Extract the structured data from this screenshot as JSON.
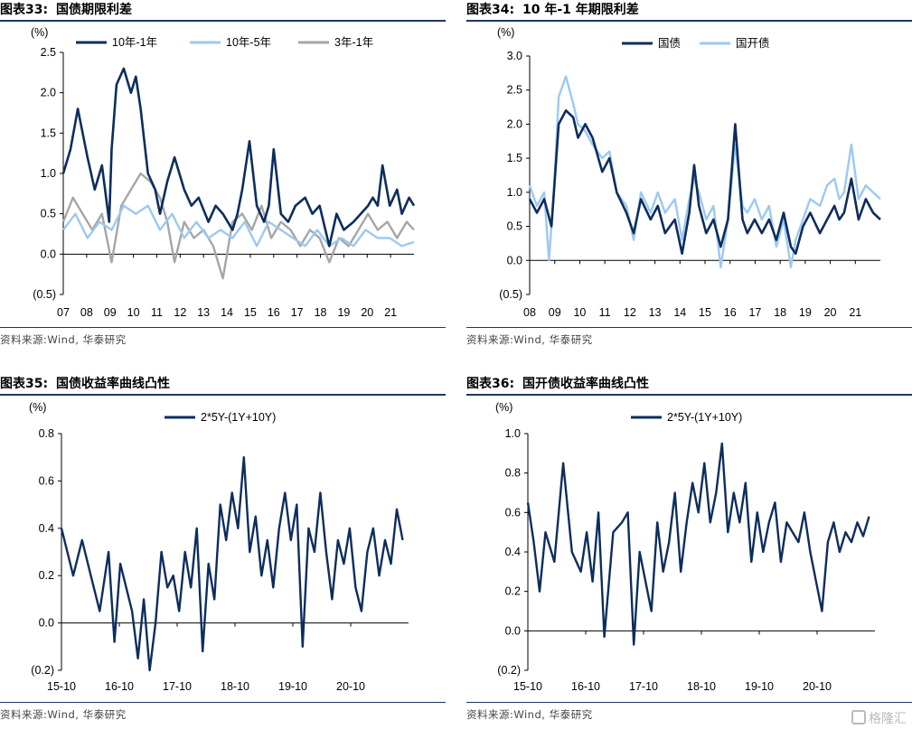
{
  "watermark": "格隆汇",
  "charts": [
    {
      "id": "c33",
      "title_num": "图表33:",
      "title": "国债期限利差",
      "source": "资料来源:Wind, 华泰研究",
      "chart_data": {
        "type": "line",
        "ylabel": "(%)",
        "ylim": [
          -0.5,
          2.5
        ],
        "yticks": [
          2.5,
          2.0,
          1.5,
          1.0,
          0.5,
          0.0,
          -0.5
        ],
        "ytick_labels": [
          "2.5",
          "2.0",
          "1.5",
          "1.0",
          "0.5",
          "0.0",
          "(0.5)"
        ],
        "xlim": [
          0,
          14.5
        ],
        "xtick_labels": [
          "07",
          "08",
          "09",
          "10",
          "11",
          "12",
          "13",
          "14",
          "15",
          "16",
          "17",
          "18",
          "19",
          "20",
          "21"
        ],
        "legend": "top",
        "series": [
          {
            "name": "10年-1年",
            "color": "#0d2d5e",
            "width": 2.6,
            "x": [
              0,
              0.3,
              0.6,
              1.0,
              1.3,
              1.6,
              1.9,
              2.0,
              2.2,
              2.5,
              2.8,
              3.0,
              3.2,
              3.5,
              3.8,
              4.0,
              4.3,
              4.6,
              5.0,
              5.3,
              5.6,
              6.0,
              6.3,
              6.6,
              7.0,
              7.2,
              7.4,
              7.7,
              8.0,
              8.3,
              8.5,
              8.7,
              9.0,
              9.3,
              9.6,
              10.0,
              10.3,
              10.6,
              11.0,
              11.3,
              11.6,
              12.0,
              12.3,
              12.6,
              12.8,
              13.0,
              13.2,
              13.5,
              13.8,
              14.0,
              14.3,
              14.5
            ],
            "y": [
              1.0,
              1.3,
              1.8,
              1.2,
              0.8,
              1.1,
              0.4,
              1.3,
              2.1,
              2.3,
              2.0,
              2.2,
              1.8,
              1.0,
              0.8,
              0.5,
              0.9,
              1.2,
              0.8,
              0.6,
              0.7,
              0.4,
              0.6,
              0.5,
              0.3,
              0.5,
              0.8,
              1.4,
              0.6,
              0.4,
              0.6,
              1.3,
              0.5,
              0.4,
              0.6,
              0.7,
              0.5,
              0.6,
              0.1,
              0.5,
              0.3,
              0.4,
              0.5,
              0.6,
              0.7,
              0.6,
              1.1,
              0.6,
              0.8,
              0.5,
              0.7,
              0.6
            ]
          },
          {
            "name": "10年-5年",
            "color": "#9cc9f2",
            "width": 2.4,
            "x": [
              0,
              0.5,
              1.0,
              1.5,
              2.0,
              2.5,
              3.0,
              3.5,
              4.0,
              4.5,
              5.0,
              5.5,
              6.0,
              6.5,
              7.0,
              7.5,
              8.0,
              8.5,
              9.0,
              9.5,
              10.0,
              10.5,
              11.0,
              11.5,
              12.0,
              12.5,
              13.0,
              13.5,
              14.0,
              14.5
            ],
            "y": [
              0.3,
              0.5,
              0.2,
              0.4,
              0.3,
              0.6,
              0.5,
              0.6,
              0.3,
              0.5,
              0.2,
              0.4,
              0.2,
              0.3,
              0.2,
              0.4,
              0.1,
              0.4,
              0.3,
              0.2,
              0.1,
              0.3,
              0.1,
              0.2,
              0.1,
              0.3,
              0.2,
              0.2,
              0.1,
              0.15
            ]
          },
          {
            "name": "3年-1年",
            "color": "#a6a6a6",
            "width": 2.4,
            "x": [
              0,
              0.4,
              0.8,
              1.2,
              1.6,
              2.0,
              2.4,
              2.8,
              3.2,
              3.6,
              4.0,
              4.3,
              4.6,
              5.0,
              5.4,
              5.8,
              6.2,
              6.6,
              7.0,
              7.4,
              7.8,
              8.2,
              8.6,
              9.0,
              9.4,
              9.8,
              10.2,
              10.6,
              11.0,
              11.4,
              11.8,
              12.2,
              12.6,
              13.0,
              13.4,
              13.8,
              14.2,
              14.5
            ],
            "y": [
              0.4,
              0.7,
              0.5,
              0.3,
              0.5,
              -0.1,
              0.6,
              0.8,
              1.0,
              0.9,
              0.7,
              0.4,
              -0.1,
              0.4,
              0.2,
              0.3,
              0.1,
              -0.3,
              0.4,
              0.5,
              0.3,
              0.6,
              0.2,
              0.4,
              0.3,
              0.1,
              0.3,
              0.2,
              -0.1,
              0.2,
              0.1,
              0.3,
              0.5,
              0.3,
              0.4,
              0.2,
              0.4,
              0.3
            ]
          }
        ]
      }
    },
    {
      "id": "c34",
      "title_num": "图表34:",
      "title": "10 年-1 年期限利差",
      "source": "资料来源:Wind, 华泰研究",
      "chart_data": {
        "type": "line",
        "ylabel": "(%)",
        "ylim": [
          -0.5,
          3.0
        ],
        "yticks": [
          3.0,
          2.5,
          2.0,
          1.5,
          1.0,
          0.5,
          0.0,
          -0.5
        ],
        "ytick_labels": [
          "3.0",
          "2.5",
          "2.0",
          "1.5",
          "1.0",
          "0.5",
          "0.0",
          "(0.5)"
        ],
        "xlim": [
          0,
          14.5
        ],
        "xtick_labels": [
          "08",
          "09",
          "10",
          "11",
          "12",
          "13",
          "14",
          "15",
          "16",
          "17",
          "18",
          "19",
          "20",
          "21"
        ],
        "legend": "top",
        "series": [
          {
            "name": "国债",
            "color": "#0d2d5e",
            "width": 2.6,
            "x": [
              0,
              0.3,
              0.6,
              0.9,
              1.0,
              1.2,
              1.5,
              1.8,
              2.0,
              2.3,
              2.6,
              3.0,
              3.3,
              3.6,
              4.0,
              4.3,
              4.6,
              5.0,
              5.3,
              5.6,
              6.0,
              6.3,
              6.6,
              6.8,
              7.0,
              7.3,
              7.6,
              7.9,
              8.2,
              8.5,
              8.8,
              9.0,
              9.3,
              9.6,
              9.9,
              10.2,
              10.5,
              10.8,
              11.0,
              11.3,
              11.6,
              12.0,
              12.3,
              12.6,
              12.8,
              13.0,
              13.3,
              13.6,
              13.9,
              14.2,
              14.5
            ],
            "y": [
              0.9,
              0.7,
              0.9,
              0.5,
              1.0,
              2.0,
              2.2,
              2.1,
              1.8,
              2.0,
              1.8,
              1.3,
              1.5,
              1.0,
              0.7,
              0.4,
              0.9,
              0.6,
              0.8,
              0.4,
              0.6,
              0.1,
              0.7,
              1.4,
              0.8,
              0.4,
              0.6,
              0.2,
              0.6,
              2.0,
              0.6,
              0.4,
              0.6,
              0.4,
              0.6,
              0.3,
              0.7,
              0.2,
              0.1,
              0.5,
              0.7,
              0.4,
              0.6,
              0.8,
              0.6,
              0.7,
              1.2,
              0.6,
              0.9,
              0.7,
              0.6
            ]
          },
          {
            "name": "国开债",
            "color": "#9cc9f2",
            "width": 2.4,
            "x": [
              0,
              0.3,
              0.6,
              0.8,
              1.0,
              1.2,
              1.5,
              1.8,
              2.0,
              2.3,
              2.6,
              3.0,
              3.3,
              3.6,
              4.0,
              4.3,
              4.6,
              5.0,
              5.3,
              5.6,
              6.0,
              6.3,
              6.6,
              6.8,
              7.0,
              7.3,
              7.6,
              7.9,
              8.2,
              8.5,
              8.8,
              9.0,
              9.3,
              9.6,
              9.9,
              10.2,
              10.5,
              10.8,
              11.0,
              11.3,
              11.6,
              12.0,
              12.3,
              12.6,
              12.8,
              13.0,
              13.3,
              13.6,
              13.9,
              14.2,
              14.5
            ],
            "y": [
              1.1,
              0.8,
              1.0,
              0.0,
              1.0,
              2.4,
              2.7,
              2.3,
              2.0,
              1.9,
              1.7,
              1.5,
              1.6,
              1.0,
              0.8,
              0.3,
              1.0,
              0.7,
              1.0,
              0.7,
              0.9,
              0.3,
              0.9,
              1.2,
              1.0,
              0.6,
              0.8,
              -0.1,
              0.6,
              1.7,
              0.8,
              0.7,
              0.9,
              0.6,
              0.8,
              0.2,
              0.6,
              -0.1,
              0.3,
              0.6,
              0.9,
              0.8,
              1.1,
              1.2,
              0.9,
              1.0,
              1.7,
              0.9,
              1.1,
              1.0,
              0.9
            ]
          }
        ]
      }
    },
    {
      "id": "c35",
      "title_num": "图表35:",
      "title": "国债收益率曲线凸性",
      "source": "资料来源:Wind, 华泰研究",
      "chart_data": {
        "type": "line",
        "ylabel": "(%)",
        "ylim": [
          -0.2,
          0.8
        ],
        "yticks": [
          0.8,
          0.6,
          0.4,
          0.2,
          0.0,
          -0.2
        ],
        "ytick_labels": [
          "0.8",
          "0.6",
          "0.4",
          "0.2",
          "0.0",
          "(0.2)"
        ],
        "xlim": [
          0,
          5.9
        ],
        "xtick_labels": [
          "15-10",
          "16-10",
          "17-10",
          "18-10",
          "19-10",
          "20-10"
        ],
        "legend": "top",
        "series": [
          {
            "name": "2*5Y-(1Y+10Y)",
            "color": "#0d2d5e",
            "width": 2.4,
            "x": [
              0,
              0.1,
              0.2,
              0.35,
              0.5,
              0.65,
              0.8,
              0.9,
              1.0,
              1.1,
              1.2,
              1.3,
              1.4,
              1.5,
              1.6,
              1.7,
              1.8,
              1.9,
              2.0,
              2.1,
              2.2,
              2.3,
              2.4,
              2.5,
              2.6,
              2.7,
              2.8,
              2.9,
              3.0,
              3.1,
              3.2,
              3.3,
              3.4,
              3.5,
              3.6,
              3.7,
              3.8,
              3.9,
              4.0,
              4.1,
              4.2,
              4.3,
              4.4,
              4.5,
              4.6,
              4.7,
              4.8,
              4.9,
              5.0,
              5.1,
              5.2,
              5.3,
              5.4,
              5.5,
              5.6,
              5.7,
              5.8
            ],
            "y": [
              0.4,
              0.3,
              0.2,
              0.35,
              0.2,
              0.05,
              0.3,
              -0.08,
              0.25,
              0.15,
              0.05,
              -0.15,
              0.1,
              -0.2,
              0.0,
              0.3,
              0.15,
              0.2,
              0.05,
              0.3,
              0.15,
              0.4,
              -0.12,
              0.25,
              0.1,
              0.5,
              0.35,
              0.55,
              0.4,
              0.7,
              0.3,
              0.45,
              0.2,
              0.35,
              0.15,
              0.4,
              0.55,
              0.35,
              0.5,
              -0.1,
              0.4,
              0.3,
              0.55,
              0.3,
              0.1,
              0.35,
              0.25,
              0.4,
              0.15,
              0.05,
              0.3,
              0.4,
              0.2,
              0.35,
              0.25,
              0.48,
              0.35
            ]
          }
        ]
      }
    },
    {
      "id": "c36",
      "title_num": "图表36:",
      "title": "国开债收益率曲线凸性",
      "source": "资料来源:Wind, 华泰研究",
      "chart_data": {
        "type": "line",
        "ylabel": "(%)",
        "ylim": [
          -0.2,
          1.0
        ],
        "yticks": [
          1.0,
          0.8,
          0.6,
          0.4,
          0.2,
          0.0,
          -0.2
        ],
        "ytick_labels": [
          "1.0",
          "0.8",
          "0.6",
          "0.4",
          "0.2",
          "0.0",
          "(0.2)"
        ],
        "xlim": [
          0,
          5.9
        ],
        "xtick_labels": [
          "15-10",
          "16-10",
          "17-10",
          "18-10",
          "19-10",
          "20-10"
        ],
        "legend": "top",
        "series": [
          {
            "name": "2*5Y-(1Y+10Y)",
            "color": "#0d2d5e",
            "width": 2.4,
            "x": [
              0,
              0.1,
              0.2,
              0.3,
              0.45,
              0.6,
              0.75,
              0.9,
              1.0,
              1.1,
              1.2,
              1.3,
              1.45,
              1.6,
              1.7,
              1.8,
              1.9,
              2.0,
              2.1,
              2.2,
              2.3,
              2.4,
              2.5,
              2.6,
              2.7,
              2.8,
              2.9,
              3.0,
              3.1,
              3.2,
              3.3,
              3.4,
              3.5,
              3.6,
              3.7,
              3.8,
              3.9,
              4.0,
              4.1,
              4.2,
              4.3,
              4.4,
              4.5,
              4.6,
              4.7,
              4.8,
              4.9,
              5.0,
              5.1,
              5.2,
              5.3,
              5.4,
              5.5,
              5.6,
              5.7,
              5.8
            ],
            "y": [
              0.65,
              0.45,
              0.2,
              0.5,
              0.35,
              0.85,
              0.4,
              0.3,
              0.5,
              0.25,
              0.6,
              -0.03,
              0.5,
              0.55,
              0.6,
              -0.07,
              0.4,
              0.25,
              0.1,
              0.55,
              0.3,
              0.45,
              0.7,
              0.3,
              0.55,
              0.75,
              0.6,
              0.85,
              0.55,
              0.7,
              0.95,
              0.5,
              0.7,
              0.55,
              0.75,
              0.35,
              0.6,
              0.4,
              0.55,
              0.65,
              0.35,
              0.55,
              0.5,
              0.45,
              0.6,
              0.4,
              0.25,
              0.1,
              0.45,
              0.55,
              0.4,
              0.5,
              0.45,
              0.55,
              0.48,
              0.58
            ]
          }
        ]
      }
    }
  ]
}
